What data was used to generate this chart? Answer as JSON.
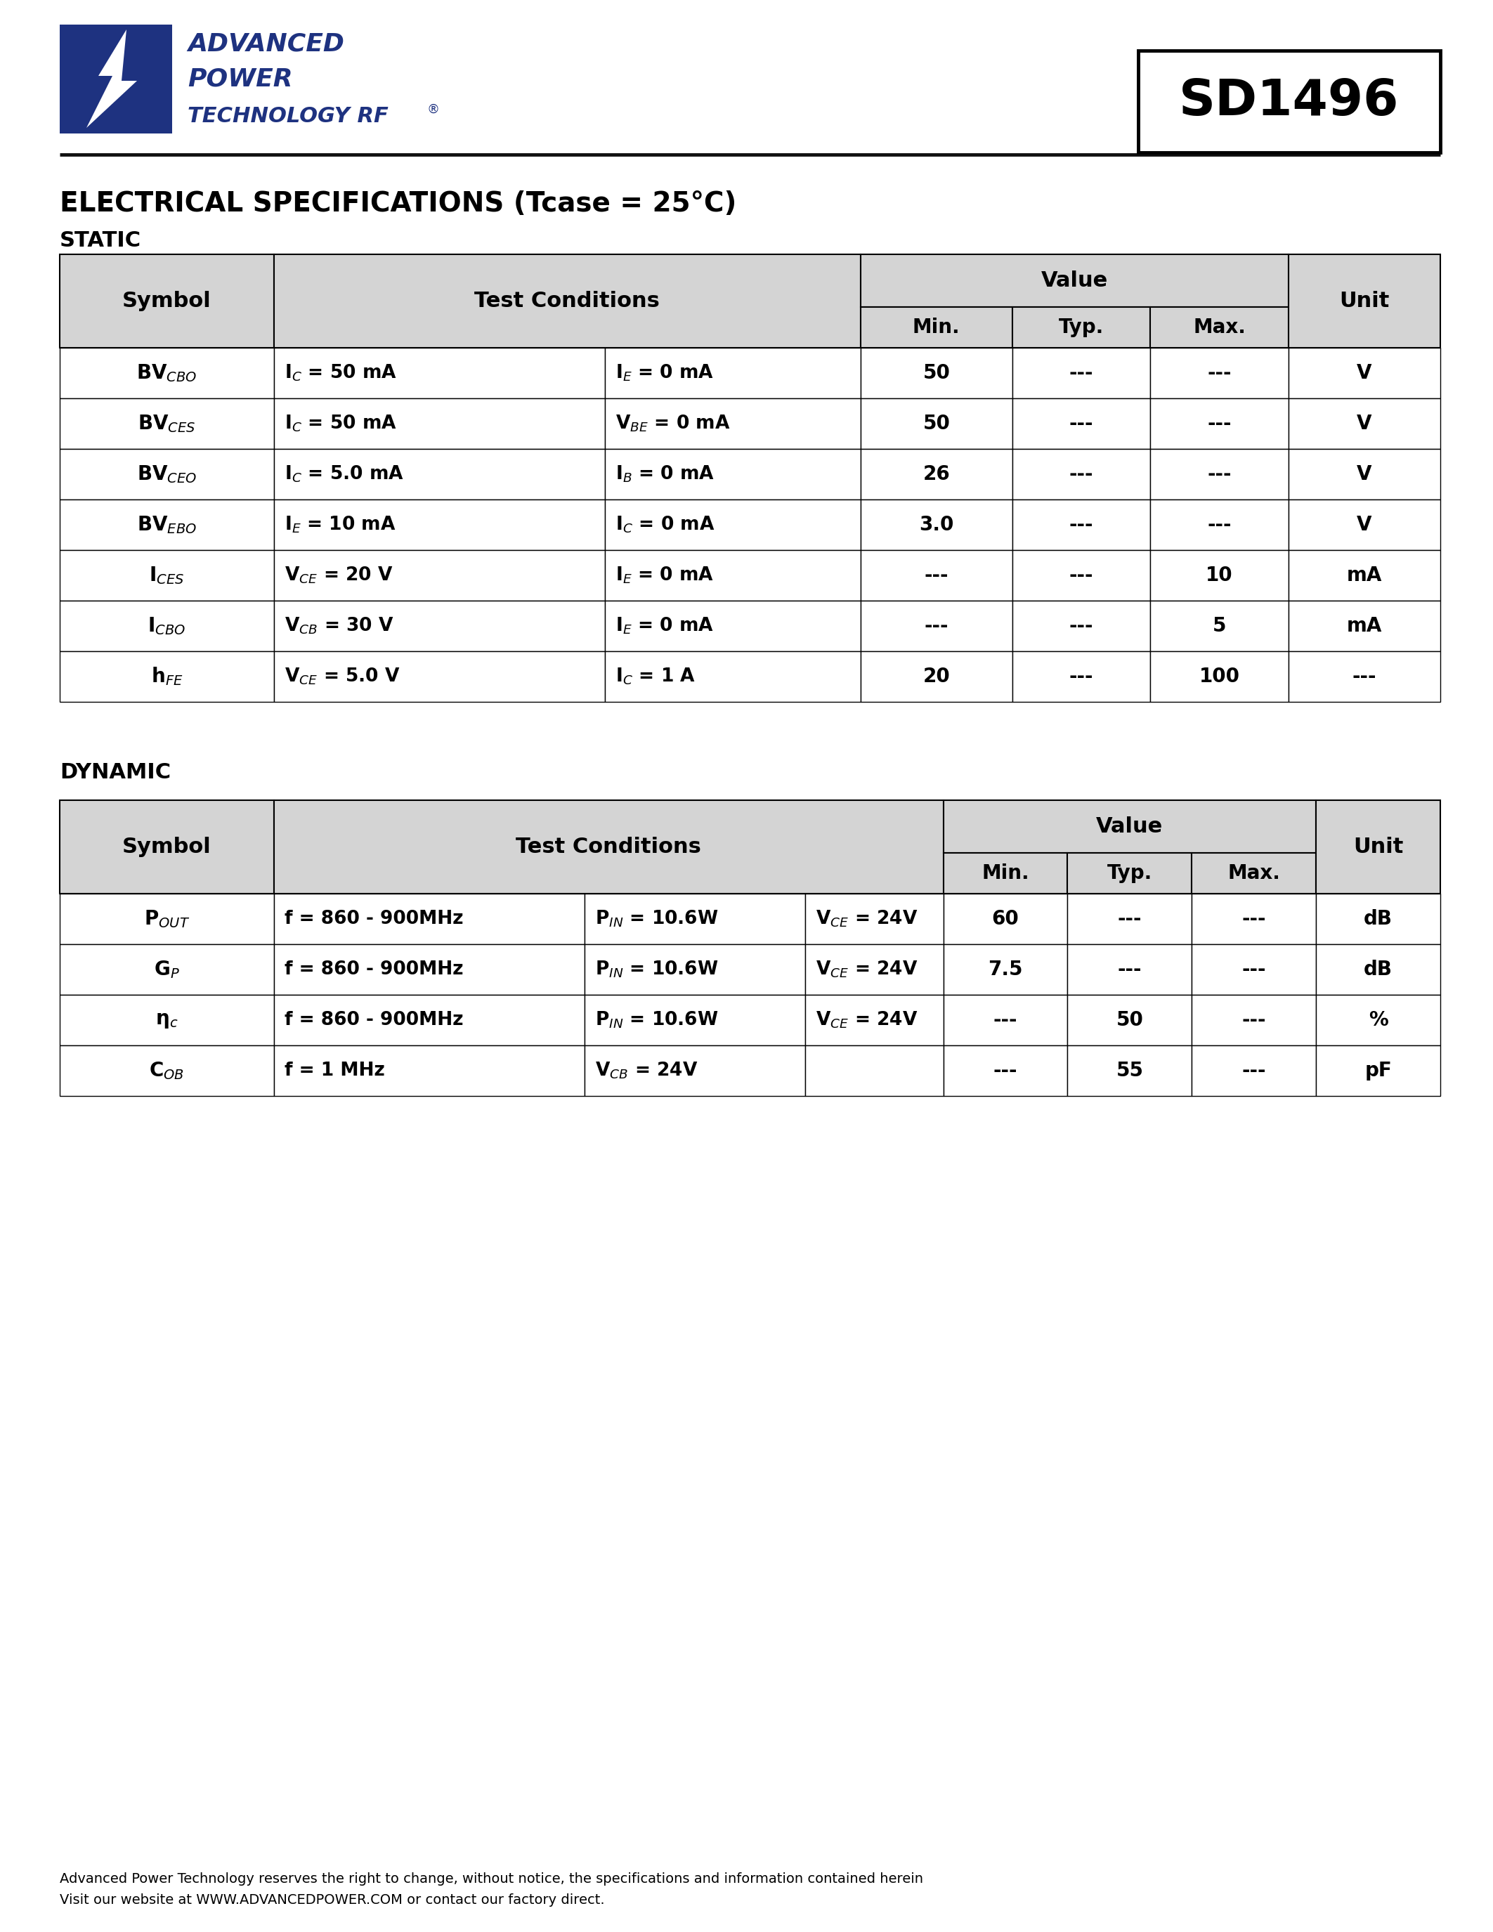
{
  "page_bg": "#ffffff",
  "brand_color": "#1e3280",
  "part_number": "SD1496",
  "section_title": "ELECTRICAL SPECIFICATIONS (Tcase = 25°C)",
  "static_label": "STATIC",
  "dynamic_label": "DYNAMIC",
  "hdr_bg": "#d4d4d4",
  "footer_text1": "Advanced Power Technology reserves the right to change, without notice, the specifications and information contained herein",
  "footer_text2": "Visit our website at WWW.ADVANCEDPOWER.COM or contact our factory direct.",
  "static_rows": [
    [
      "BV$_{CBO}$",
      "I$_C$ = 50 mA",
      "I$_E$ = 0 mA",
      "50",
      "---",
      "---",
      "V"
    ],
    [
      "BV$_{CES}$",
      "I$_C$ = 50 mA",
      "V$_{BE}$ = 0 mA",
      "50",
      "---",
      "---",
      "V"
    ],
    [
      "BV$_{CEO}$",
      "I$_C$ = 5.0 mA",
      "I$_B$ = 0 mA",
      "26",
      "---",
      "---",
      "V"
    ],
    [
      "BV$_{EBO}$",
      "I$_E$ = 10 mA",
      "I$_C$ = 0 mA",
      "3.0",
      "---",
      "---",
      "V"
    ],
    [
      "I$_{CES}$",
      "V$_{CE}$ = 20 V",
      "I$_E$ = 0 mA",
      "---",
      "---",
      "10",
      "mA"
    ],
    [
      "I$_{CBO}$",
      "V$_{CB}$ = 30 V",
      "I$_E$ = 0 mA",
      "---",
      "---",
      "5",
      "mA"
    ],
    [
      "h$_{FE}$",
      "V$_{CE}$ = 5.0 V",
      "I$_C$ = 1 A",
      "20",
      "---",
      "100",
      "---"
    ]
  ],
  "dynamic_rows": [
    [
      "P$_{OUT}$",
      "f = 860 - 900MHz",
      "P$_{IN}$ = 10.6W",
      "V$_{CE}$ = 24V",
      "60",
      "---",
      "---",
      "dB"
    ],
    [
      "G$_P$",
      "f = 860 - 900MHz",
      "P$_{IN}$ = 10.6W",
      "V$_{CE}$ = 24V",
      "7.5",
      "---",
      "---",
      "dB"
    ],
    [
      "η$_c$",
      "f = 860 - 900MHz",
      "P$_{IN}$ = 10.6W",
      "V$_{CE}$ = 24V",
      "---",
      "50",
      "---",
      "%"
    ],
    [
      "C$_{OB}$",
      "f = 1 MHz",
      "V$_{CB}$ = 24V",
      "",
      "---",
      "55",
      "---",
      "pF"
    ]
  ]
}
